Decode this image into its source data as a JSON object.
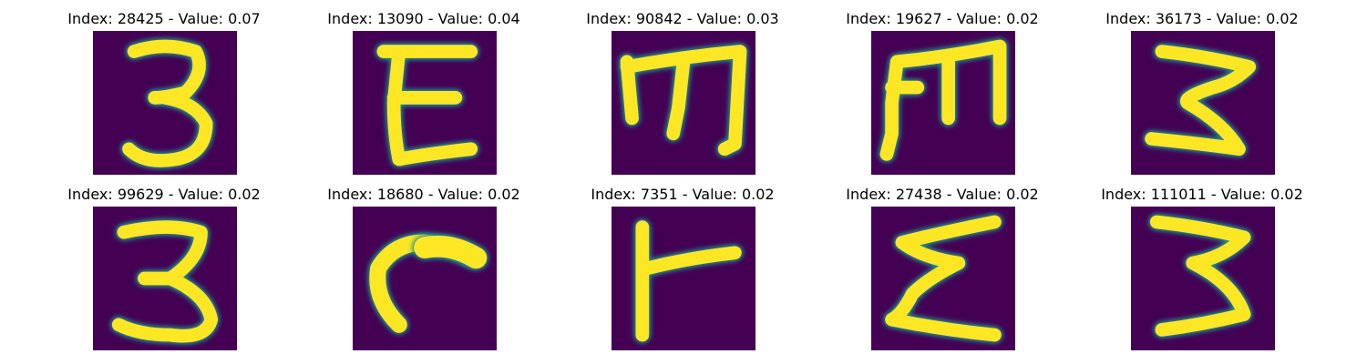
{
  "colors": {
    "background": "#440154",
    "mid": "#21918c",
    "stroke": "#fde725"
  },
  "panels": [
    {
      "title": "Index: 28425 - Value: 0.07",
      "glyph": "3"
    },
    {
      "title": "Index: 13090 - Value: 0.04",
      "glyph": "E"
    },
    {
      "title": "Index: 90842 - Value: 0.03",
      "glyph": "m"
    },
    {
      "title": "Index: 19627 - Value: 0.02",
      "glyph": "m"
    },
    {
      "title": "Index: 36173 - Value: 0.02",
      "glyph": "3"
    },
    {
      "title": "Index: 99629 - Value: 0.02",
      "glyph": "3"
    },
    {
      "title": "Index: 18680 - Value: 0.02",
      "glyph": "r"
    },
    {
      "title": "Index: 7351 - Value: 0.02",
      "glyph": "r"
    },
    {
      "title": "Index: 27438 - Value: 0.02",
      "glyph": "Σ"
    },
    {
      "title": "Index: 111011 - Value: 0.02",
      "glyph": "3"
    }
  ]
}
